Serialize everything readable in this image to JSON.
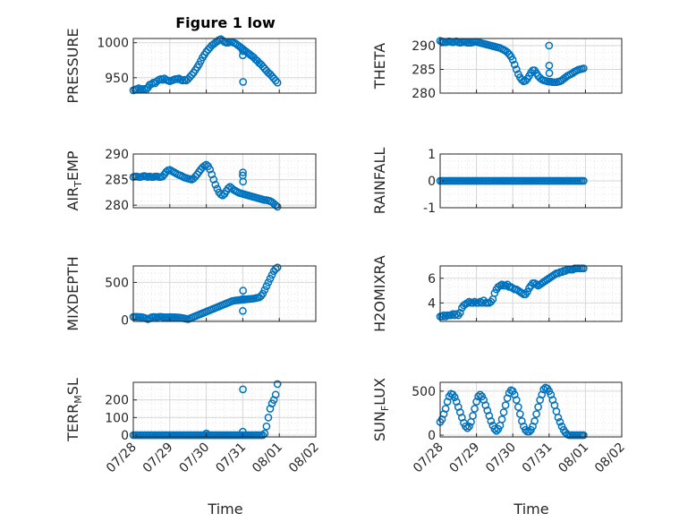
{
  "figure_title": "Figure 1 low",
  "colors": {
    "marker": "#0072BD",
    "axis": "#262626",
    "grid": "#d7d7d7",
    "minor_grid": "#e6e6e6"
  },
  "chart_data": [
    {
      "type": "scatter",
      "ylabel": "PRESSURE",
      "yticks": [
        "950",
        "1000"
      ],
      "ylim": [
        928,
        1006
      ],
      "xlim": [
        "07/28",
        "08/02"
      ],
      "x_start": "07/28 00:00",
      "x_step_days": 0.05,
      "values": [
        932,
        933,
        934,
        935,
        933,
        934,
        934,
        933,
        936,
        940,
        941,
        943,
        942,
        945,
        947,
        948,
        947,
        949,
        947,
        946,
        945,
        946,
        947,
        948,
        948,
        949,
        947,
        946,
        947,
        946,
        948,
        951,
        954,
        957,
        961,
        965,
        969,
        974,
        979,
        983,
        987,
        990,
        993,
        996,
        998,
        1000,
        1002,
        1004,
        1005,
        1003,
        1001,
        1000,
        1000,
        1001,
        1001,
        1000,
        999,
        997,
        995,
        993,
        991,
        989,
        987,
        985,
        983,
        981,
        979,
        976,
        974,
        971,
        969,
        966,
        963,
        960,
        957,
        955,
        952,
        949,
        946,
        943
      ],
      "outliers": [
        {
          "x": "07/31 00:00",
          "y": 982
        },
        {
          "x": "07/31 00:10",
          "y": 944
        },
        {
          "x": "07/31 00:05",
          "y": 988
        }
      ]
    },
    {
      "type": "scatter",
      "ylabel": "THETA",
      "yticks": [
        "280",
        "285",
        "290"
      ],
      "ylim": [
        280,
        291.5
      ],
      "xlim": [
        "07/28",
        "08/02"
      ],
      "x_start": "07/28 00:00",
      "x_step_days": 0.05,
      "values": [
        291,
        290.9,
        290.8,
        290.7,
        290.8,
        290.9,
        290.8,
        290.7,
        290.8,
        290.9,
        290.7,
        290.6,
        290.7,
        290.8,
        290.7,
        290.6,
        290.6,
        290.6,
        290.7,
        290.8,
        290.8,
        290.7,
        290.6,
        290.5,
        290.4,
        290.3,
        290.2,
        290.1,
        290,
        289.9,
        289.8,
        289.7,
        289.6,
        289.5,
        289.3,
        289.1,
        288.9,
        288.6,
        288.2,
        287.7,
        287,
        286,
        285,
        284,
        283.3,
        282.8,
        282.5,
        282.6,
        283,
        283.6,
        284.3,
        284.8,
        284.8,
        284.2,
        283.6,
        283.2,
        282.9,
        282.7,
        282.6,
        282.5,
        282.4,
        282.4,
        282.3,
        282.3,
        282.3,
        282.4,
        282.5,
        282.7,
        283,
        283.3,
        283.6,
        283.8,
        284,
        284.2,
        284.5,
        284.7,
        284.9,
        285,
        285.1,
        285.2
      ],
      "outliers": [
        {
          "x": "07/31 00:00",
          "y": 290
        },
        {
          "x": "07/31 00:05",
          "y": 285.8
        },
        {
          "x": "07/31 00:10",
          "y": 284.2
        }
      ]
    },
    {
      "type": "scatter",
      "ylabel": "AIR_TEMP",
      "yticks": [
        "280",
        "285",
        "290"
      ],
      "ylim": [
        279.5,
        290
      ],
      "xlim": [
        "07/28",
        "08/02"
      ],
      "x_start": "07/28 00:00",
      "x_step_days": 0.05,
      "values": [
        285.5,
        285.6,
        285.6,
        285.5,
        285.5,
        285.6,
        285.7,
        285.6,
        285.5,
        285.6,
        285.5,
        285.5,
        285.6,
        285.6,
        285.5,
        285.5,
        285.6,
        286,
        286.5,
        286.8,
        286.9,
        286.7,
        286.5,
        286.3,
        286.1,
        285.9,
        285.8,
        285.6,
        285.4,
        285.3,
        285.2,
        285.1,
        285,
        285.2,
        285.6,
        286,
        286.5,
        287,
        287.4,
        287.7,
        287.9,
        287.6,
        287,
        286,
        285,
        284,
        283.2,
        282.5,
        282.1,
        281.9,
        282.2,
        282.8,
        283.3,
        283.6,
        283.3,
        283,
        282.8,
        282.6,
        282.4,
        282.3,
        282.2,
        282.1,
        282,
        281.9,
        281.8,
        281.7,
        281.6,
        281.5,
        281.4,
        281.3,
        281.2,
        281.1,
        281,
        281,
        280.9,
        280.8,
        280.6,
        280.3,
        280,
        279.7
      ],
      "outliers": [
        {
          "x": "07/31 00:00",
          "y": 285.8
        },
        {
          "x": "07/31 00:05",
          "y": 286.4
        },
        {
          "x": "07/31 00:10",
          "y": 284.6
        }
      ]
    },
    {
      "type": "scatter",
      "ylabel": "RAINFALL",
      "yticks": [
        "-1",
        "0",
        "1"
      ],
      "ylim": [
        -1,
        1
      ],
      "xlim": [
        "07/28",
        "08/02"
      ],
      "x_start": "07/28 00:00",
      "x_step_days": 0.05,
      "values": [
        0,
        0,
        0,
        0,
        0,
        0,
        0,
        0,
        0,
        0,
        0,
        0,
        0,
        0,
        0,
        0,
        0,
        0,
        0,
        0,
        0,
        0,
        0,
        0,
        0,
        0,
        0,
        0,
        0,
        0,
        0,
        0,
        0,
        0,
        0,
        0,
        0,
        0,
        0,
        0,
        0,
        0,
        0,
        0,
        0,
        0,
        0,
        0,
        0,
        0,
        0,
        0,
        0,
        0,
        0,
        0,
        0,
        0,
        0,
        0,
        0,
        0,
        0,
        0,
        0,
        0,
        0,
        0,
        0,
        0,
        0,
        0,
        0,
        0,
        0,
        0,
        0,
        0,
        0,
        0
      ],
      "outliers": []
    },
    {
      "type": "scatter",
      "ylabel": "MIXDEPTH",
      "yticks": [
        "0",
        "500"
      ],
      "ylim": [
        -20,
        720
      ],
      "xlim": [
        "07/28",
        "08/02"
      ],
      "x_start": "07/28 00:00",
      "x_step_days": 0.05,
      "values": [
        40,
        42,
        41,
        40,
        38,
        35,
        30,
        20,
        10,
        20,
        35,
        40,
        38,
        35,
        40,
        42,
        38,
        36,
        35,
        36,
        38,
        37,
        36,
        35,
        34,
        33,
        30,
        25,
        20,
        15,
        10,
        20,
        30,
        40,
        50,
        60,
        70,
        80,
        90,
        100,
        110,
        120,
        130,
        140,
        150,
        160,
        170,
        180,
        190,
        200,
        210,
        220,
        230,
        240,
        250,
        255,
        260,
        262,
        265,
        268,
        270,
        272,
        275,
        278,
        280,
        282,
        285,
        290,
        295,
        300,
        320,
        350,
        400,
        450,
        500,
        550,
        600,
        650,
        680,
        700
      ],
      "outliers": [
        {
          "x": "07/31 00:00",
          "y": 120
        },
        {
          "x": "07/31 00:05",
          "y": 280
        },
        {
          "x": "07/31 00:10",
          "y": 390
        }
      ]
    },
    {
      "type": "scatter",
      "ylabel": "H2OMIXRA",
      "yticks": [
        "4",
        "6"
      ],
      "ylim": [
        2.5,
        7
      ],
      "xlim": [
        "07/28",
        "08/02"
      ],
      "x_start": "07/28 00:00",
      "x_step_days": 0.05,
      "values": [
        2.9,
        2.9,
        3,
        2.9,
        3,
        3,
        3,
        3.1,
        3,
        3.1,
        3,
        3.2,
        3.6,
        3.8,
        3.9,
        4,
        4.1,
        4,
        4,
        4.1,
        4,
        4,
        4.1,
        4,
        4.2,
        4,
        4,
        4,
        4.1,
        4.3,
        4.8,
        5.1,
        5.3,
        5.4,
        5.5,
        5.4,
        5.4,
        5.5,
        5.3,
        5.3,
        5.2,
        5.1,
        5.1,
        5,
        4.9,
        4.8,
        4.7,
        4.7,
        4.9,
        5.2,
        5.4,
        5.6,
        5.6,
        5.5,
        5.4,
        5.5,
        5.6,
        5.7,
        5.8,
        5.9,
        6,
        6.1,
        6.2,
        6.3,
        6.4,
        6.4,
        6.5,
        6.5,
        6.6,
        6.6,
        6.7,
        6.7,
        6.7,
        6.7,
        6.8,
        6.8,
        6.8,
        6.8,
        6.8,
        6.8
      ],
      "outliers": []
    },
    {
      "type": "scatter",
      "ylabel": "TERR_MSL",
      "yticks": [
        "0",
        "100",
        "200"
      ],
      "ylim": [
        -10,
        300
      ],
      "xlim": [
        "07/28",
        "08/02"
      ],
      "x_start": "07/28 00:00",
      "x_step_days": 0.05,
      "values": [
        0,
        0,
        0,
        0,
        0,
        0,
        0,
        0,
        0,
        0,
        0,
        0,
        0,
        0,
        0,
        0,
        0,
        0,
        0,
        0,
        0,
        0,
        0,
        0,
        0,
        0,
        0,
        0,
        0,
        0,
        0,
        0,
        0,
        0,
        0,
        0,
        0,
        0,
        0,
        0,
        0,
        0,
        0,
        0,
        0,
        0,
        0,
        0,
        0,
        0,
        0,
        0,
        0,
        0,
        0,
        0,
        0,
        0,
        0,
        0,
        0,
        0,
        0,
        0,
        0,
        0,
        0,
        0,
        0,
        0,
        0,
        0,
        10,
        50,
        100,
        150,
        180,
        200,
        230,
        290
      ],
      "outliers": [
        {
          "x": "07/30 00:00",
          "y": 10
        },
        {
          "x": "07/31 00:00",
          "y": 20
        },
        {
          "x": "07/31 00:05",
          "y": 260
        }
      ]
    },
    {
      "type": "scatter",
      "ylabel": "SUN_FLUX",
      "yticks": [
        "0",
        "500"
      ],
      "ylim": [
        -20,
        600
      ],
      "xlim": [
        "07/28",
        "08/02"
      ],
      "x_start": "07/28 00:00",
      "x_step_days": 0.05,
      "values": [
        150,
        180,
        240,
        300,
        380,
        440,
        470,
        460,
        430,
        380,
        320,
        260,
        200,
        140,
        100,
        80,
        100,
        150,
        220,
        300,
        380,
        440,
        460,
        440,
        400,
        340,
        280,
        220,
        160,
        110,
        70,
        50,
        70,
        110,
        180,
        260,
        340,
        420,
        480,
        510,
        500,
        460,
        400,
        320,
        240,
        160,
        100,
        60,
        40,
        40,
        60,
        100,
        160,
        240,
        320,
        400,
        460,
        520,
        540,
        530,
        500,
        460,
        400,
        340,
        270,
        200,
        150,
        100,
        60,
        30,
        10,
        0,
        0,
        0,
        0,
        0,
        0,
        0,
        0,
        0
      ],
      "outliers": []
    }
  ],
  "x_tick_labels": [
    "07/28",
    "07/29",
    "07/30",
    "07/31",
    "08/01",
    "08/02"
  ],
  "x_label": "Time"
}
